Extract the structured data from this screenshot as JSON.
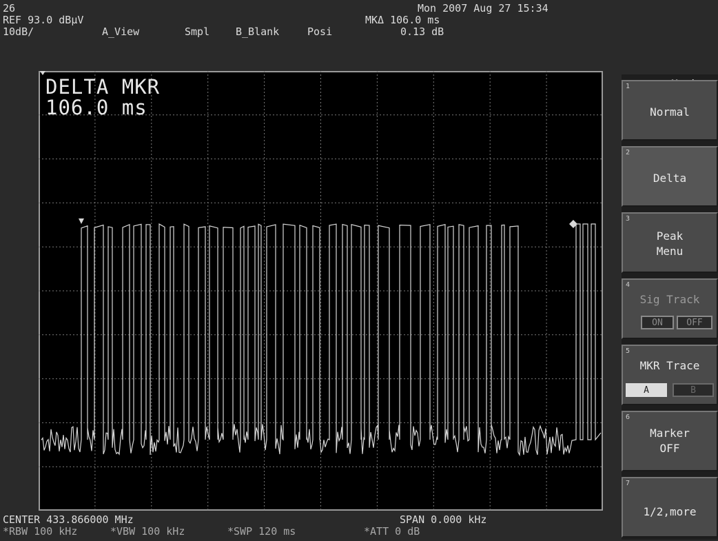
{
  "header": {
    "screen_no": "26",
    "datetime": "Mon 2007 Aug 27 15:34",
    "ref_level": "REF 93.0 dBµV",
    "scale": "10dB/",
    "view": "A_View",
    "detector": "Smpl",
    "b_view": "B_Blank",
    "pos": "Posi",
    "mk_delta_time": "MKΔ 106.0 ms",
    "mk_delta_amp": "0.13 dB"
  },
  "screen_overlay": {
    "line1": "DELTA MKR",
    "line2": "106.0 ms"
  },
  "footer": {
    "center": "CENTER 433.866000 MHz",
    "span": "SPAN 0.000 kHz",
    "rbw": "*RBW 100 kHz",
    "vbw": "*VBW 100 kHz",
    "swp": "*SWP 120 ms",
    "att": "*ATT 0 dB"
  },
  "softkeys": {
    "title": "Marker",
    "keys": [
      {
        "num": "1",
        "label": "Normal"
      },
      {
        "num": "2",
        "label": "Delta"
      },
      {
        "num": "3",
        "label": "Peak\nMenu"
      },
      {
        "num": "4",
        "label": "Sig Track",
        "opt_on": "ON",
        "opt_off": "OFF"
      },
      {
        "num": "5",
        "label": "MKR Trace",
        "opt_a": "A",
        "opt_b": "B"
      },
      {
        "num": "6",
        "label": "Marker\nOFF"
      },
      {
        "num": "7",
        "label": "1/2,more"
      }
    ]
  },
  "colors": {
    "background": "#2a2a2a",
    "graticule": "#000000",
    "trace": "#d8d8d8"
  }
}
